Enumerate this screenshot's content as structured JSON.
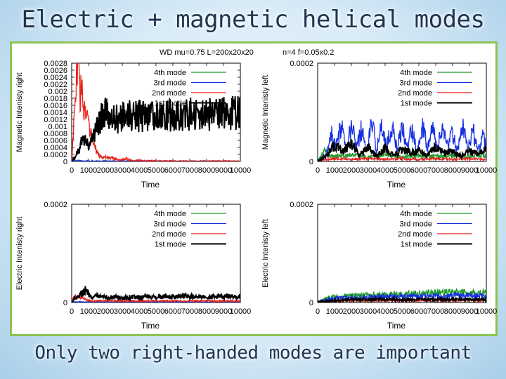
{
  "slide": {
    "title": "Electric + magnetic helical modes",
    "caption": "Only two right-handed modes are important"
  },
  "figure_header": {
    "left": "WD mu=0.75 L=200x20x20",
    "right": "n=4   f=0.05x0.2"
  },
  "chart_data": [
    {
      "type": "line",
      "id": "mag-right",
      "title": "",
      "xlabel": "Time",
      "ylabel": "Magnetic Intenisty right",
      "xlim": [
        0,
        10000
      ],
      "ylim": [
        0,
        0.0028
      ],
      "xticks": [
        0,
        1000,
        2000,
        3000,
        4000,
        5000,
        6000,
        7000,
        8000,
        9000,
        10000
      ],
      "yticks": [
        0,
        0.0002,
        0.0004,
        0.0006,
        0.0008,
        0.001,
        0.0012,
        0.0014,
        0.0016,
        0.0018,
        0.002,
        0.0022,
        0.0024,
        0.0026,
        0.0028
      ],
      "ytick_labels": [
        "0",
        "0.0002",
        "0.0004",
        "0.0006",
        "0.0008",
        "0.001",
        "0.0012",
        "0.0014",
        "0.0016",
        "0.0018",
        "0.002",
        "0.0022",
        "0.0024",
        "0.0026",
        "0.0028"
      ],
      "legend": "top-right",
      "series": [
        {
          "name": "4th mode",
          "color": "#1f9a2d",
          "x": [
            0,
            2000,
            4000,
            6000,
            8000,
            10000
          ],
          "y": [
            2e-06,
            3e-06,
            3e-06,
            3e-06,
            3e-06,
            3e-06
          ]
        },
        {
          "name": "3rd mode",
          "color": "#1630e0",
          "x": [
            0,
            300,
            600,
            1500,
            3000,
            5000,
            7000,
            10000
          ],
          "y": [
            5e-06,
            3e-05,
            1e-05,
            1.2e-05,
            1e-05,
            8e-06,
            8e-06,
            8e-06
          ]
        },
        {
          "name": "2nd mode",
          "color": "#e8231c",
          "x": [
            0,
            200,
            350,
            450,
            550,
            700,
            900,
            1100,
            1300,
            1500,
            1800,
            2000,
            2400,
            2800,
            3200,
            3600,
            4500,
            6000,
            8000,
            10000
          ],
          "y": [
            1e-05,
            0.0017,
            0.0027,
            0.0024,
            0.002,
            0.0016,
            0.0012,
            0.0008,
            0.0005,
            0.00025,
            0.0001,
            0.00012,
            0.0001,
            4e-05,
            8e-05,
            3e-05,
            2e-05,
            1e-05,
            1e-05,
            1e-05
          ]
        },
        {
          "name": "1st mode",
          "color": "#000000",
          "x": [
            0,
            400,
            600,
            800,
            1000,
            1200,
            1400,
            1600,
            1800,
            2000,
            2200,
            2500,
            3000,
            3500,
            4000,
            4500,
            5000,
            5500,
            6000,
            6500,
            7000,
            7500,
            8000,
            8500,
            9000,
            9500,
            10000
          ],
          "y": [
            1e-05,
            0.0003,
            0.00055,
            0.0006,
            0.0005,
            0.0006,
            0.0009,
            0.0011,
            0.0013,
            0.00134,
            0.00128,
            0.0012,
            0.00125,
            0.00132,
            0.0013,
            0.00128,
            0.00133,
            0.00132,
            0.00131,
            0.00132,
            0.00135,
            0.00134,
            0.00134,
            0.00136,
            0.00137,
            0.00137,
            0.0014
          ]
        }
      ]
    },
    {
      "type": "line",
      "id": "mag-left",
      "title": "",
      "xlabel": "Time",
      "ylabel": "Magnetic Intenisty left",
      "xlim": [
        0,
        10000
      ],
      "ylim": [
        0,
        0.0002
      ],
      "xticks": [
        0,
        1000,
        2000,
        3000,
        4000,
        5000,
        6000,
        7000,
        8000,
        9000,
        10000
      ],
      "yticks": [
        0,
        0.0002
      ],
      "ytick_labels": [
        "0",
        "0.0002"
      ],
      "legend": "top-right",
      "series": [
        {
          "name": "4th mode",
          "color": "#1f9a2d",
          "x": [
            0,
            400,
            800,
            1200,
            1600,
            2000,
            3000,
            4000,
            5000,
            6000,
            7000,
            8000,
            9000,
            10000
          ],
          "y": [
            1e-06,
            2e-05,
            1e-05,
            1.2e-05,
            1e-05,
            1.4e-05,
            1e-05,
            1.2e-05,
            1e-05,
            1.2e-05,
            1e-05,
            1.2e-05,
            1e-05,
            1.2e-05
          ]
        },
        {
          "name": "3rd mode",
          "color": "#1630e0",
          "x": [
            0,
            500,
            800,
            1100,
            1400,
            1700,
            2000,
            2300,
            2600,
            2900,
            3200,
            3500,
            3800,
            4100,
            4400,
            4700,
            5000,
            5300,
            5600,
            5900,
            6200,
            6500,
            6800,
            7100,
            7400,
            7700,
            8000,
            8300,
            8600,
            8900,
            9200,
            9500,
            9800,
            10000
          ],
          "y": [
            1e-06,
            1.2e-05,
            6e-05,
            3e-05,
            7e-05,
            2e-05,
            7.5e-05,
            3e-05,
            6.5e-05,
            2e-05,
            8e-05,
            2.5e-05,
            7e-05,
            3e-05,
            7.5e-05,
            2.5e-05,
            7e-05,
            3e-05,
            6.5e-05,
            2e-05,
            8e-05,
            3e-05,
            7e-05,
            2.5e-05,
            7.5e-05,
            3e-05,
            6e-05,
            2e-05,
            7e-05,
            3e-05,
            6.5e-05,
            2e-05,
            5e-05,
            3e-05
          ]
        },
        {
          "name": "2nd mode",
          "color": "#e8231c",
          "x": [
            0,
            1000,
            2000,
            3000,
            4000,
            5000,
            6000,
            7000,
            8000,
            9000,
            10000
          ],
          "y": [
            1e-06,
            6e-06,
            4e-06,
            6e-06,
            4e-06,
            6e-06,
            4e-06,
            6e-06,
            4e-06,
            6e-06,
            4e-06
          ]
        },
        {
          "name": "1st mode",
          "color": "#000000",
          "x": [
            0,
            500,
            1000,
            1500,
            2000,
            2500,
            3000,
            3500,
            4000,
            4500,
            5000,
            5500,
            6000,
            6500,
            7000,
            7500,
            8000,
            8500,
            9000,
            9500,
            10000
          ],
          "y": [
            1e-06,
            1e-05,
            3.5e-05,
            2e-05,
            3.5e-05,
            1.2e-05,
            3e-05,
            1e-05,
            2.8e-05,
            1.2e-05,
            2.5e-05,
            1.8e-05,
            2.2e-05,
            1.2e-05,
            3e-05,
            1.8e-05,
            2e-05,
            1e-05,
            2e-05,
            1.5e-05,
            2.5e-05
          ]
        }
      ]
    },
    {
      "type": "line",
      "id": "elec-right",
      "title": "",
      "xlabel": "Time",
      "ylabel": "Electric Intenisty right",
      "xlim": [
        0,
        10000
      ],
      "ylim": [
        0,
        0.0002
      ],
      "xticks": [
        0,
        1000,
        2000,
        3000,
        4000,
        5000,
        6000,
        7000,
        8000,
        9000,
        10000
      ],
      "yticks": [
        0,
        0.0002
      ],
      "ytick_labels": [
        "0",
        "0.0002"
      ],
      "legend": "top-right",
      "series": [
        {
          "name": "4th mode",
          "color": "#1f9a2d",
          "x": [
            0,
            5000,
            10000
          ],
          "y": [
            5e-07,
            5e-07,
            5e-07
          ]
        },
        {
          "name": "3rd mode",
          "color": "#1630e0",
          "x": [
            0,
            5000,
            10000
          ],
          "y": [
            1e-06,
            1e-06,
            1e-06
          ]
        },
        {
          "name": "2nd mode",
          "color": "#e8231c",
          "x": [
            0,
            200,
            400,
            600,
            900,
            1200,
            2000,
            4000,
            6000,
            8000,
            10000
          ],
          "y": [
            2e-06,
            1.5e-05,
            1e-05,
            1.2e-05,
            5e-06,
            3e-06,
            3e-06,
            3e-06,
            3e-06,
            3e-06,
            3e-06
          ]
        },
        {
          "name": "1st mode",
          "color": "#000000",
          "x": [
            0,
            300,
            600,
            800,
            1000,
            1200,
            1500,
            2000,
            2500,
            3000,
            3500,
            4000,
            4500,
            5000,
            5500,
            6000,
            6500,
            7000,
            7500,
            8000,
            8500,
            9000,
            9500,
            10000
          ],
          "y": [
            2e-06,
            1.2e-05,
            1.8e-05,
            2.5e-05,
            1.8e-05,
            1.2e-05,
            1.2e-05,
            1e-05,
            1.1e-05,
            9e-06,
            1.1e-05,
            1e-05,
            1.2e-05,
            1.1e-05,
            1.2e-05,
            1.1e-05,
            1.3e-05,
            1.2e-05,
            1.2e-05,
            1.1e-05,
            1.3e-05,
            1.2e-05,
            1.2e-05,
            1.1e-05
          ]
        }
      ]
    },
    {
      "type": "line",
      "id": "elec-left",
      "title": "",
      "xlabel": "Time",
      "ylabel": "Electric Intenisty left",
      "xlim": [
        0,
        10000
      ],
      "ylim": [
        0,
        0.0002
      ],
      "xticks": [
        0,
        1000,
        2000,
        3000,
        4000,
        5000,
        6000,
        7000,
        8000,
        9000,
        10000
      ],
      "yticks": [
        0,
        0.0002
      ],
      "ytick_labels": [
        "0",
        "0.0002"
      ],
      "legend": "top-right",
      "series": [
        {
          "name": "4th mode",
          "color": "#1f9a2d",
          "x": [
            0,
            500,
            1000,
            2000,
            3000,
            4000,
            5000,
            6000,
            7000,
            8000,
            9000,
            10000
          ],
          "y": [
            1e-06,
            8e-06,
            1.2e-05,
            1.4e-05,
            1.5e-05,
            1.6e-05,
            1.7e-05,
            1.8e-05,
            2e-05,
            2e-05,
            2e-05,
            2e-05
          ]
        },
        {
          "name": "3rd mode",
          "color": "#1630e0",
          "x": [
            0,
            500,
            1000,
            2000,
            3000,
            4000,
            5000,
            6000,
            7000,
            8000,
            9000,
            10000
          ],
          "y": [
            1e-06,
            6e-06,
            9e-06,
            1e-05,
            1.1e-05,
            1.2e-05,
            1.2e-05,
            1.3e-05,
            1.3e-05,
            1.4e-05,
            1.4e-05,
            1.4e-05
          ]
        },
        {
          "name": "2nd mode",
          "color": "#e8231c",
          "x": [
            0,
            2000,
            4000,
            6000,
            8000,
            10000
          ],
          "y": [
            1e-06,
            4e-06,
            4e-06,
            4e-06,
            4e-06,
            4e-06
          ]
        },
        {
          "name": "1st mode",
          "color": "#000000",
          "x": [
            0,
            2000,
            4000,
            6000,
            8000,
            10000
          ],
          "y": [
            1e-06,
            6e-06,
            6e-06,
            6e-06,
            6e-06,
            6e-06
          ]
        }
      ]
    }
  ]
}
